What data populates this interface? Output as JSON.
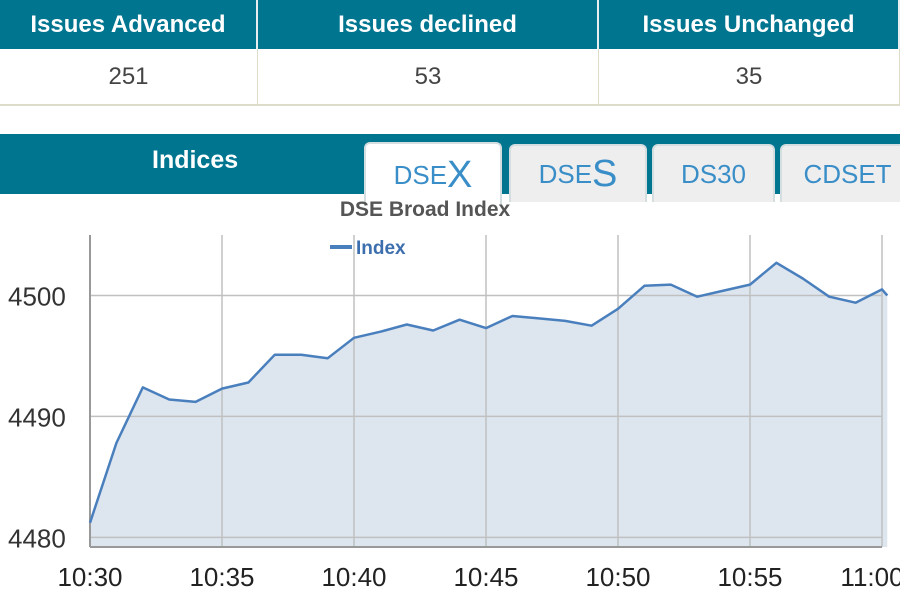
{
  "stats": {
    "headers": [
      "Issues Advanced",
      "Issues declined",
      "Issues Unchanged"
    ],
    "values": [
      "251",
      "53",
      "35"
    ]
  },
  "indices": {
    "label": "Indices",
    "tabs": [
      {
        "prefix": "DSE",
        "suffix": "X",
        "active": true
      },
      {
        "prefix": "DSE",
        "suffix": "S",
        "active": false
      },
      {
        "prefix": "DS30",
        "suffix": "",
        "active": false
      },
      {
        "prefix": "CDSET",
        "suffix": "",
        "active": false
      }
    ]
  },
  "colors": {
    "header": "#007590",
    "line": "#4a7fbd",
    "fill": "#dde6ef",
    "tab_text": "#3a8ec8"
  },
  "chart_data": {
    "type": "area",
    "title": "DSE Broad Index",
    "legend": "Index",
    "legend_position": "top-left",
    "grid": true,
    "x_ticks": [
      "10:30",
      "10:35",
      "10:40",
      "10:45",
      "10:50",
      "10:55",
      "11:00"
    ],
    "x_range": [
      "10:30",
      "11:00"
    ],
    "y_ticks": [
      4480,
      4490,
      4500
    ],
    "ylim": [
      4479.2,
      4505
    ],
    "series": [
      {
        "name": "Index",
        "x": [
          "10:30",
          "10:31",
          "10:32",
          "10:33",
          "10:34",
          "10:35",
          "10:36",
          "10:37",
          "10:38",
          "10:39",
          "10:40",
          "10:41",
          "10:42",
          "10:43",
          "10:44",
          "10:45",
          "10:46",
          "10:47",
          "10:48",
          "10:49",
          "10:50",
          "10:51",
          "10:52",
          "10:53",
          "10:54",
          "10:55",
          "10:56",
          "10:57",
          "10:58",
          "10:59",
          "11:00",
          "11:00"
        ],
        "values": [
          4481.2,
          4487.8,
          4492.4,
          4491.4,
          4491.2,
          4492.3,
          4492.8,
          4495.1,
          4495.1,
          4494.8,
          4496.5,
          4497.0,
          4497.6,
          4497.1,
          4498.0,
          4497.3,
          4498.3,
          4498.1,
          4497.9,
          4497.5,
          4498.9,
          4500.8,
          4500.9,
          4499.9,
          4500.4,
          4500.9,
          4502.7,
          4501.4,
          4499.9,
          4499.4,
          4500.5,
          4500.0
        ]
      }
    ]
  }
}
